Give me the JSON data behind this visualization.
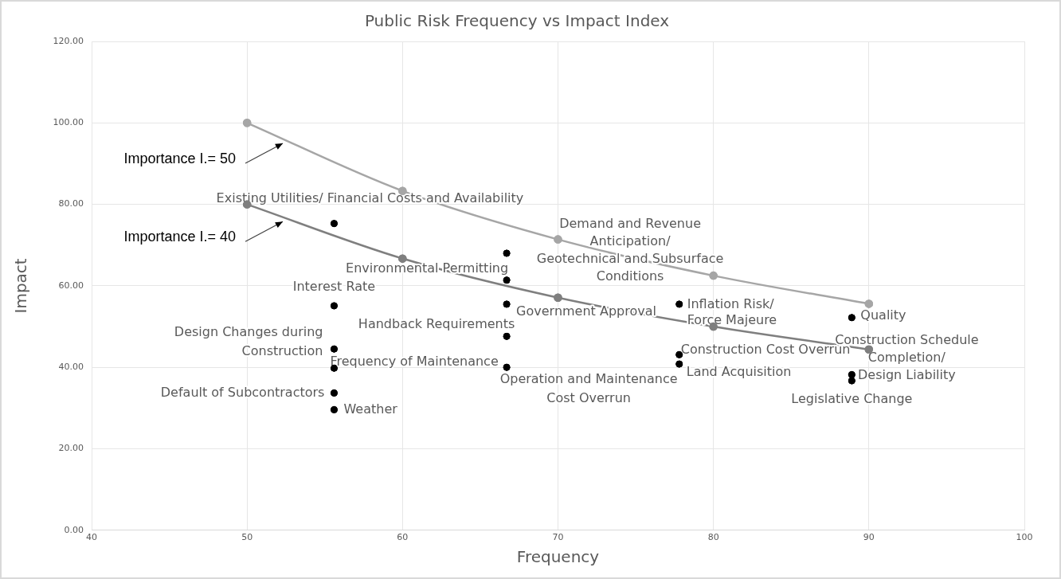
{
  "chart_data": {
    "type": "scatter",
    "title": "Public Risk Frequency vs Impact Index",
    "xlabel": "Frequency",
    "ylabel": "Impact",
    "xlim": [
      40,
      100
    ],
    "xticks": [
      40,
      50,
      60,
      70,
      80,
      90,
      100
    ],
    "ylim": [
      0,
      120
    ],
    "yticks": [
      {
        "value": 0,
        "label": "0.00"
      },
      {
        "value": 20,
        "label": "20.00"
      },
      {
        "value": 40,
        "label": "40.00"
      },
      {
        "value": 60,
        "label": "60.00"
      },
      {
        "value": 80,
        "label": "80.00"
      },
      {
        "value": 100,
        "label": "100.00"
      },
      {
        "value": 120,
        "label": "120.00"
      }
    ],
    "grid": true,
    "legend": false,
    "marker": "circle",
    "series": [
      {
        "name": "Importance I.= 50",
        "type": "line",
        "color": "#a6a6a6",
        "x": [
          50,
          60,
          70,
          80,
          90
        ],
        "values": [
          100,
          83.3,
          71.4,
          62.5,
          55.6
        ]
      },
      {
        "name": "Importance I.= 40",
        "type": "line",
        "color": "#7f7f7f",
        "x": [
          50,
          60,
          70,
          80,
          90
        ],
        "values": [
          80,
          66.7,
          57.1,
          50,
          44.4
        ]
      },
      {
        "type": "scatter",
        "color": "#000000",
        "x": [
          55.6,
          55.6,
          55.6,
          55.6,
          55.6,
          55.6,
          66.7,
          66.7,
          66.7,
          66.7,
          66.7,
          77.8,
          77.8,
          77.8,
          88.9,
          88.9,
          88.9
        ],
        "values": [
          75.3,
          55.1,
          44.5,
          39.8,
          33.7,
          29.6,
          68,
          61.4,
          55.5,
          47.6,
          40,
          55.5,
          43.1,
          40.8,
          52.2,
          38.2,
          36.7
        ]
      }
    ],
    "annotations": [
      {
        "text": "Existing Utilities/ Financial Costs and Availability",
        "x": 55.6,
        "y": 75.3
      },
      {
        "text": "Interest Rate",
        "x": 55.6,
        "y": 55.1
      },
      {
        "text": "Design Changes during\nConstruction",
        "x": 55.6,
        "y": 44.5
      },
      {
        "text": "Frequency of Maintenance",
        "x": 55.6,
        "y": 39.8
      },
      {
        "text": "Default of Subcontractors",
        "x": 55.6,
        "y": 33.7
      },
      {
        "text": "Weather",
        "x": 55.6,
        "y": 29.6
      },
      {
        "text": "Demand and Revenue\nAnticipation/\nGeotechnical and Subsurface\nConditions",
        "x": 66.7,
        "y": 68
      },
      {
        "text": "Environmental Permitting",
        "x": 66.7,
        "y": 61.4
      },
      {
        "text": "Government Approval",
        "x": 66.7,
        "y": 55.5
      },
      {
        "text": "Handback Requirements",
        "x": 66.7,
        "y": 47.6
      },
      {
        "text": "Operation and Maintenance\nCost Overrun",
        "x": 66.7,
        "y": 40
      },
      {
        "text": "Inflation Risk/\nForce Majeure",
        "x": 77.8,
        "y": 55.5
      },
      {
        "text": "Construction Cost Overrun",
        "x": 77.8,
        "y": 43.1
      },
      {
        "text": "Land Acquisition",
        "x": 77.8,
        "y": 40.8
      },
      {
        "text": "Quality",
        "x": 88.9,
        "y": 52.2
      },
      {
        "text": "Construction Schedule\nCompletion/\nDesign Liability",
        "x": 88.9,
        "y": 38.2
      },
      {
        "text": "Legislative Change",
        "x": 88.9,
        "y": 36.7
      }
    ]
  }
}
